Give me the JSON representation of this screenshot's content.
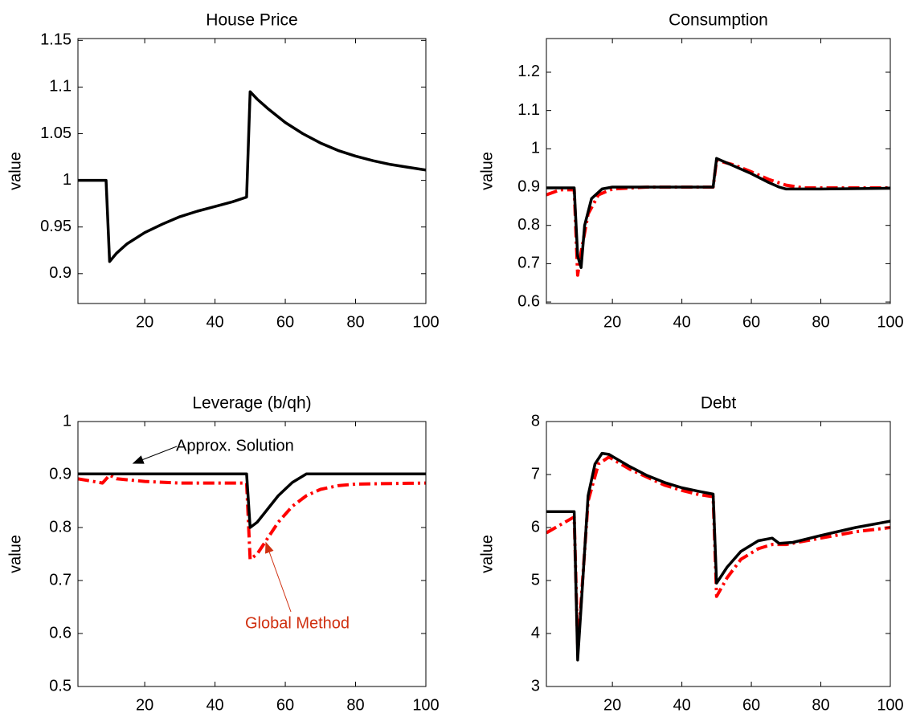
{
  "chart_data": [
    {
      "type": "line",
      "title": "House Price",
      "ylabel": "value",
      "xlim": [
        1,
        100
      ],
      "ylim": [
        0.868,
        1.152
      ],
      "xticks": [
        20,
        40,
        60,
        80,
        100
      ],
      "yticks": [
        0.9,
        0.95,
        1,
        1.05,
        1.1,
        1.15
      ],
      "series": [
        {
          "color": "#000000",
          "style": "solid",
          "x": [
            1,
            9,
            10,
            12,
            15,
            20,
            25,
            30,
            35,
            40,
            45,
            49,
            50,
            52,
            55,
            60,
            65,
            70,
            75,
            80,
            85,
            90,
            95,
            100
          ],
          "values": [
            1,
            1,
            0.913,
            0.922,
            0.932,
            0.944,
            0.953,
            0.961,
            0.967,
            0.972,
            0.977,
            0.982,
            1.095,
            1.087,
            1.077,
            1.062,
            1.05,
            1.04,
            1.032,
            1.026,
            1.021,
            1.017,
            1.014,
            1.011
          ]
        }
      ]
    },
    {
      "type": "line",
      "title": "Consumption",
      "ylabel": "value",
      "xlim": [
        1,
        100
      ],
      "ylim": [
        0.596,
        1.288
      ],
      "xticks": [
        20,
        40,
        60,
        80,
        100
      ],
      "yticks": [
        0.6,
        0.7,
        0.8,
        0.9,
        1,
        1.1,
        1.2
      ],
      "series": [
        {
          "color": "#ff0000",
          "style": "dashdot",
          "x": [
            1,
            5,
            9,
            10,
            11,
            13,
            16,
            20,
            30,
            49,
            50,
            55,
            60,
            65,
            70,
            75,
            100
          ],
          "values": [
            0.88,
            0.893,
            0.893,
            0.67,
            0.73,
            0.83,
            0.88,
            0.895,
            0.9,
            0.9,
            0.97,
            0.958,
            0.94,
            0.92,
            0.905,
            0.898,
            0.898
          ]
        },
        {
          "color": "#000000",
          "style": "solid",
          "x": [
            1,
            9,
            10,
            11,
            12,
            14,
            17,
            20,
            49,
            50,
            55,
            60,
            65,
            68,
            70,
            80,
            100
          ],
          "values": [
            0.898,
            0.898,
            0.72,
            0.69,
            0.8,
            0.87,
            0.895,
            0.9,
            0.9,
            0.975,
            0.955,
            0.935,
            0.912,
            0.9,
            0.895,
            0.895,
            0.897
          ]
        }
      ]
    },
    {
      "type": "line",
      "title": "Leverage (b/qh)",
      "ylabel": "value",
      "xlim": [
        1,
        100
      ],
      "ylim": [
        0.5,
        1
      ],
      "xticks": [
        20,
        40,
        60,
        80,
        100
      ],
      "yticks": [
        0.5,
        0.6,
        0.7,
        0.8,
        0.9,
        1
      ],
      "annotations": [
        {
          "text": "Approx. Solution",
          "color": "#000000"
        },
        {
          "text": "Global Method",
          "color": "#d03010"
        }
      ],
      "series": [
        {
          "color": "#ff0000",
          "style": "dashdot",
          "x": [
            1,
            8,
            10,
            12,
            20,
            30,
            49,
            50,
            52,
            55,
            58,
            62,
            66,
            70,
            75,
            80,
            100
          ],
          "values": [
            0.892,
            0.884,
            0.899,
            0.892,
            0.887,
            0.884,
            0.884,
            0.74,
            0.75,
            0.78,
            0.81,
            0.84,
            0.86,
            0.872,
            0.879,
            0.882,
            0.884
          ]
        },
        {
          "color": "#000000",
          "style": "solid",
          "x": [
            1,
            49,
            50,
            52,
            55,
            58,
            62,
            66,
            100
          ],
          "values": [
            0.901,
            0.901,
            0.8,
            0.81,
            0.835,
            0.86,
            0.885,
            0.901,
            0.901
          ]
        }
      ]
    },
    {
      "type": "line",
      "title": "Debt",
      "ylabel": "value",
      "xlim": [
        1,
        100
      ],
      "ylim": [
        3,
        8
      ],
      "xticks": [
        20,
        40,
        60,
        80,
        100
      ],
      "yticks": [
        3,
        4,
        5,
        6,
        7,
        8
      ],
      "series": [
        {
          "color": "#ff0000",
          "style": "dashdot",
          "x": [
            1,
            5,
            9,
            10,
            11,
            13,
            16,
            19,
            25,
            30,
            35,
            40,
            45,
            49,
            50,
            53,
            57,
            62,
            66,
            70,
            80,
            90,
            100
          ],
          "values": [
            5.9,
            6.05,
            6.2,
            3.8,
            4.6,
            6.5,
            7.2,
            7.33,
            7.1,
            6.95,
            6.8,
            6.7,
            6.62,
            6.58,
            4.7,
            5.05,
            5.4,
            5.6,
            5.68,
            5.68,
            5.8,
            5.92,
            6.0
          ]
        },
        {
          "color": "#000000",
          "style": "solid",
          "x": [
            1,
            9,
            10,
            11,
            13,
            15,
            17,
            19,
            25,
            30,
            35,
            40,
            45,
            49,
            50,
            53,
            57,
            62,
            66,
            68,
            72,
            80,
            90,
            100
          ],
          "values": [
            6.3,
            6.3,
            3.5,
            4.5,
            6.6,
            7.2,
            7.4,
            7.38,
            7.15,
            6.98,
            6.85,
            6.75,
            6.68,
            6.63,
            4.95,
            5.25,
            5.55,
            5.75,
            5.8,
            5.7,
            5.72,
            5.85,
            6.0,
            6.12
          ]
        }
      ]
    }
  ]
}
